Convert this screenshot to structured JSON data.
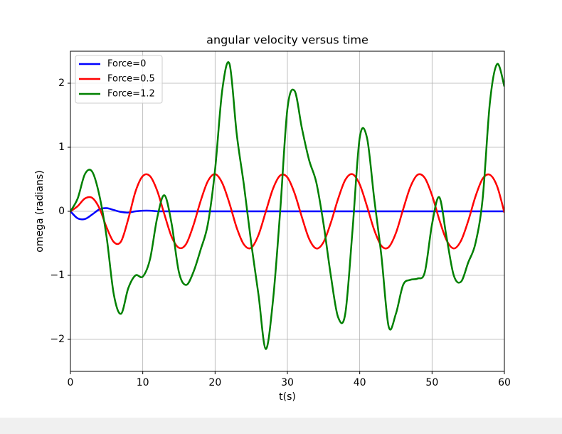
{
  "chart_data": {
    "type": "line",
    "title": "angular velocity versus time",
    "xlabel": "t(s)",
    "ylabel": "omega (radians)",
    "x": [
      0,
      1,
      2,
      3,
      4,
      5,
      6,
      7,
      8,
      9,
      10,
      11,
      12,
      13,
      14,
      15,
      16,
      17,
      18,
      19,
      20,
      21,
      22,
      23,
      24,
      25,
      26,
      27,
      28,
      29,
      30,
      31,
      32,
      33,
      34,
      35,
      36,
      37,
      38,
      39,
      40,
      41,
      42,
      43,
      44,
      45,
      46,
      47,
      48,
      49,
      50,
      51,
      52,
      53,
      54,
      55,
      56,
      57,
      58,
      59,
      60
    ],
    "series": [
      {
        "name": "Force=0",
        "color": "#0000ff",
        "values": [
          0,
          -0.11,
          -0.12,
          -0.05,
          0.03,
          0.05,
          0.02,
          -0.01,
          -0.02,
          0,
          0.01,
          0.01,
          0,
          0,
          0,
          0,
          0,
          0,
          0,
          0,
          0,
          0,
          0,
          0,
          0,
          0,
          0,
          0,
          0,
          0,
          0,
          0,
          0,
          0,
          0,
          0,
          0,
          0,
          0,
          0,
          0,
          0,
          0,
          0,
          0,
          0,
          0,
          0,
          0,
          0,
          0,
          0,
          0,
          0,
          0,
          0,
          0,
          0,
          0,
          0,
          0
        ]
      },
      {
        "name": "Force=0.5",
        "color": "#ff0000",
        "values": [
          0,
          0.08,
          0.2,
          0.21,
          0.05,
          -0.25,
          -0.48,
          -0.47,
          -0.12,
          0.31,
          0.55,
          0.55,
          0.32,
          -0.05,
          -0.4,
          -0.57,
          -0.51,
          -0.22,
          0.16,
          0.47,
          0.58,
          0.44,
          0.12,
          -0.26,
          -0.52,
          -0.57,
          -0.37,
          -0.01,
          0.35,
          0.56,
          0.53,
          0.28,
          -0.09,
          -0.43,
          -0.58,
          -0.48,
          -0.18,
          0.19,
          0.49,
          0.58,
          0.42,
          0.08,
          -0.29,
          -0.54,
          -0.56,
          -0.34,
          0.03,
          0.38,
          0.57,
          0.52,
          0.25,
          -0.13,
          -0.45,
          -0.58,
          -0.46,
          -0.15,
          0.23,
          0.51,
          0.57,
          0.39,
          -0.02
        ]
      },
      {
        "name": "Force=1.2",
        "color": "#008000",
        "values": [
          0,
          0.2,
          0.58,
          0.62,
          0.25,
          -0.4,
          -1.3,
          -1.6,
          -1.2,
          -1.0,
          -1.02,
          -0.75,
          -0.1,
          0.25,
          -0.2,
          -0.95,
          -1.15,
          -0.95,
          -0.6,
          -0.2,
          0.65,
          1.9,
          2.3,
          1.2,
          0.4,
          -0.5,
          -1.3,
          -2.15,
          -1.4,
          0.0,
          1.6,
          1.88,
          1.3,
          0.8,
          0.45,
          -0.2,
          -1.0,
          -1.65,
          -1.6,
          -0.3,
          1.15,
          1.15,
          0.2,
          -0.7,
          -1.8,
          -1.6,
          -1.15,
          -1.07,
          -1.05,
          -0.95,
          -0.2,
          0.22,
          -0.4,
          -1.0,
          -1.1,
          -0.8,
          -0.5,
          0.2,
          1.7,
          2.3,
          1.95
        ]
      }
    ],
    "xlim": [
      0,
      60
    ],
    "ylim": [
      -2.5,
      2.5
    ],
    "xticks": [
      0,
      10,
      20,
      30,
      40,
      50,
      60
    ],
    "yticks": [
      {
        "value": -2,
        "label": "−2"
      },
      {
        "value": -1,
        "label": "−1"
      },
      0,
      1,
      2
    ],
    "grid": true,
    "legend": "upper left"
  }
}
